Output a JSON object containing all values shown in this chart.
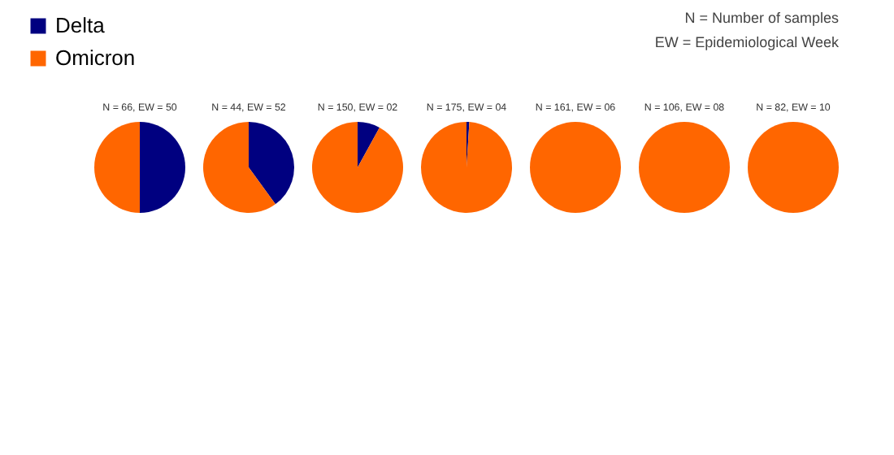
{
  "chart_data": [
    {
      "type": "pie",
      "title": "N = 66, EW = 50",
      "categories": [
        "Delta",
        "Omicron"
      ],
      "values": [
        50,
        50
      ],
      "colors": [
        "#000080",
        "#ff6600"
      ],
      "legend": "top left",
      "annotations": [
        "N = Number of samples",
        "EW = Epidemiological Week"
      ]
    },
    {
      "type": "pie",
      "title": "N = 44, EW = 52",
      "categories": [
        null,
        null
      ],
      "values": [
        40,
        60
      ],
      "colors": [
        "#000080",
        "#ff6600"
      ]
    },
    {
      "type": "pie",
      "title": "N = 150, EW = 02",
      "categories": [
        null,
        null
      ],
      "values": [
        8,
        92
      ],
      "colors": [
        "#000080",
        "#ff6600"
      ]
    },
    {
      "type": "pie",
      "title": "N = 175, EW = 04",
      "categories": [
        null,
        null
      ],
      "values": [
        1,
        99
      ],
      "colors": [
        "#000080",
        "#ff6600"
      ]
    },
    {
      "type": "pie",
      "title": "N = 161, EW = 06",
      "categories": [
        null,
        null
      ],
      "values": [
        0,
        100
      ],
      "colors": [
        "#000080",
        "#ff6600"
      ]
    },
    {
      "type": "pie",
      "title": "N = 106, EW = 08",
      "categories": [
        null,
        null
      ],
      "values": [
        0,
        100
      ],
      "colors": [
        "#000080",
        "#ff6600"
      ]
    },
    {
      "type": "pie",
      "title": "N = 82, EW = 10",
      "categories": [
        null,
        null
      ],
      "values": [
        0,
        100
      ],
      "colors": [
        "#000080",
        "#ff6600"
      ]
    }
  ]
}
